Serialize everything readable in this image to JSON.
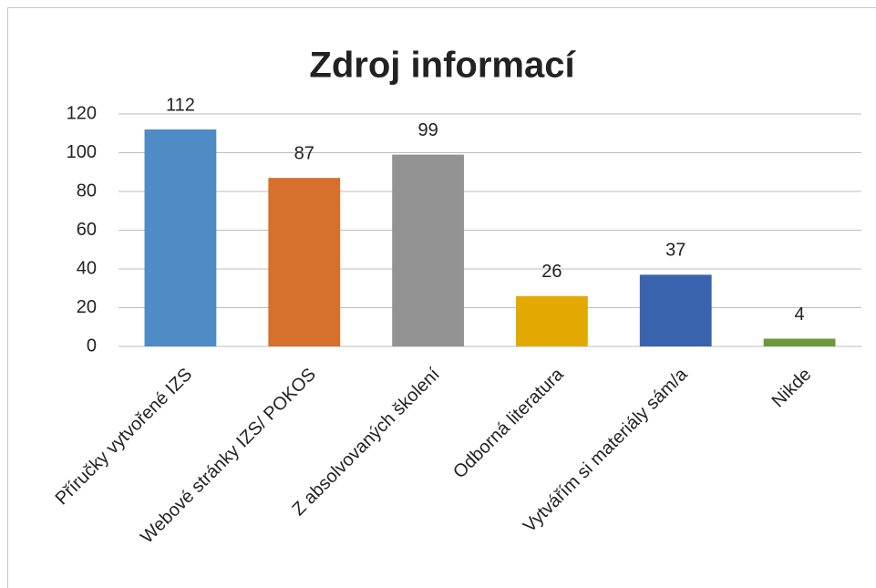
{
  "chart_data": {
    "type": "bar",
    "title": "Zdroj informací",
    "categories": [
      "Příručky vytvořené IZS",
      "Webové stránky IZS/ POKOS",
      "Z absolvovaných školení",
      "Odborná literatura",
      "Vytvářím si materiály sám/a",
      "Nikde"
    ],
    "values": [
      112,
      87,
      99,
      26,
      37,
      4
    ],
    "colors": [
      "#4f8cc5",
      "#d6702c",
      "#939393",
      "#e2a900",
      "#3a63ad",
      "#6a9a3c"
    ],
    "ylim": [
      0,
      120
    ],
    "yticks": [
      0,
      20,
      40,
      60,
      80,
      100,
      120
    ],
    "grid": true
  }
}
